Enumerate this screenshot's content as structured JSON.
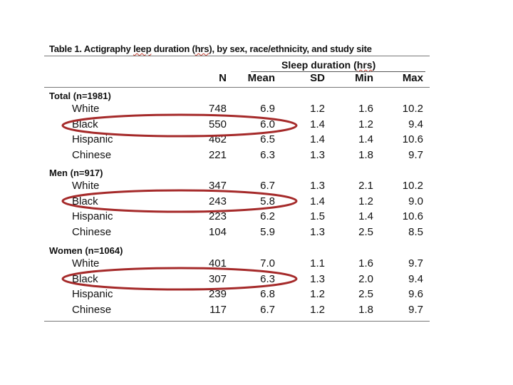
{
  "table": {
    "title_pre": "Table  1. Actigraphy ",
    "title_squiggle1": "leep",
    "title_mid": " duration (",
    "title_squiggle2": "hrs",
    "title_post": "), by sex, race/ethnicity, and study site",
    "header": {
      "span_pre": "Sleep duration (",
      "span_squiggle": "hrs",
      "span_post": ")",
      "columns": [
        "N",
        "Mean",
        "SD",
        "Min",
        "Max"
      ]
    },
    "groups": [
      {
        "label": "Total (n=1981)",
        "rows": [
          {
            "race": "White",
            "n": "748",
            "mean": "6.9",
            "sd": "1.2",
            "min": "1.6",
            "max": "10.2"
          },
          {
            "race": "Black",
            "n": "550",
            "mean": "6.0",
            "sd": "1.4",
            "min": "1.2",
            "max": "9.4"
          },
          {
            "race": "Hispanic",
            "n": "462",
            "mean": "6.5",
            "sd": "1.4",
            "min": "1.4",
            "max": "10.6"
          },
          {
            "race": "Chinese",
            "n": "221",
            "mean": "6.3",
            "sd": "1.3",
            "min": "1.8",
            "max": "9.7"
          }
        ]
      },
      {
        "label": "Men (n=917)",
        "rows": [
          {
            "race": "White",
            "n": "347",
            "mean": "6.7",
            "sd": "1.3",
            "min": "2.1",
            "max": "10.2"
          },
          {
            "race": "Black",
            "n": "243",
            "mean": "5.8",
            "sd": "1.4",
            "min": "1.2",
            "max": "9.0"
          },
          {
            "race": "Hispanic",
            "n": "223",
            "mean": "6.2",
            "sd": "1.5",
            "min": "1.4",
            "max": "10.6"
          },
          {
            "race": "Chinese",
            "n": "104",
            "mean": "5.9",
            "sd": "1.3",
            "min": "2.5",
            "max": "8.5"
          }
        ]
      },
      {
        "label": "Women (n=1064)",
        "rows": [
          {
            "race": "White",
            "n": "401",
            "mean": "7.0",
            "sd": "1.1",
            "min": "1.6",
            "max": "9.7"
          },
          {
            "race": "Black",
            "n": "307",
            "mean": "6.3",
            "sd": "1.3",
            "min": "2.0",
            "max": "9.4"
          },
          {
            "race": "Hispanic",
            "n": "239",
            "mean": "6.8",
            "sd": "1.2",
            "min": "2.5",
            "max": "9.6"
          },
          {
            "race": "Chinese",
            "n": "117",
            "mean": "6.7",
            "sd": "1.2",
            "min": "1.8",
            "max": "9.7"
          }
        ]
      }
    ]
  },
  "highlight_color": "#a52a2a"
}
